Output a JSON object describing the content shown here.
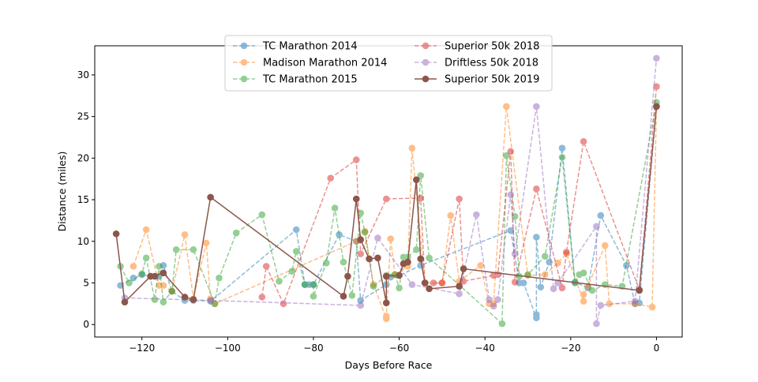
{
  "chart_data": {
    "type": "line",
    "title": "",
    "xlabel": "Days Before Race",
    "ylabel": "Distance (miles)",
    "xlim": [
      -131,
      6
    ],
    "ylim": [
      -1.5,
      33.5
    ],
    "xticks": [
      -120,
      -100,
      -80,
      -60,
      -40,
      -20,
      0
    ],
    "yticks": [
      0,
      5,
      10,
      15,
      20,
      25,
      30
    ],
    "legend_position": "top-center",
    "grid": false,
    "series": [
      {
        "name": "TC Marathon 2014",
        "color": "#1f77b4",
        "style": "dashed",
        "alpha": 0.5,
        "points": [
          [
            -125,
            4.7
          ],
          [
            -122,
            5.6
          ],
          [
            -120,
            6.0
          ],
          [
            -118,
            5.8
          ],
          [
            -116,
            5.8
          ],
          [
            -115,
            7.1
          ],
          [
            -113,
            4.0
          ],
          [
            -110,
            2.9
          ],
          [
            -108,
            2.9
          ],
          [
            -104,
            2.8
          ],
          [
            -84,
            11.4
          ],
          [
            -82,
            4.8
          ],
          [
            -81,
            4.8
          ],
          [
            -80,
            4.8
          ],
          [
            -74,
            10.8
          ],
          [
            -70,
            10.0
          ],
          [
            -69,
            2.9
          ],
          [
            -63,
            4.8
          ],
          [
            -62,
            5.7
          ],
          [
            -60,
            5.9
          ],
          [
            -55,
            7.1
          ],
          [
            -34,
            11.3
          ],
          [
            -32,
            5.0
          ],
          [
            -31,
            5.0
          ],
          [
            -28,
            0.8
          ],
          [
            -28,
            1.2
          ],
          [
            -28,
            10.5
          ],
          [
            -27,
            4.5
          ],
          [
            -25,
            7.5
          ],
          [
            -22,
            21.2
          ],
          [
            -19,
            5.1
          ],
          [
            -16,
            4.4
          ],
          [
            -13,
            13.1
          ],
          [
            -7,
            7.1
          ],
          [
            -5,
            2.5
          ],
          [
            -4,
            2.6
          ],
          [
            0,
            26.2
          ]
        ]
      },
      {
        "name": "Madison Marathon 2014",
        "color": "#ff7f0e",
        "style": "dashed",
        "alpha": 0.5,
        "points": [
          [
            -122,
            7.0
          ],
          [
            -119,
            11.4
          ],
          [
            -116,
            4.7
          ],
          [
            -115,
            4.7
          ],
          [
            -113,
            4.0
          ],
          [
            -110,
            10.8
          ],
          [
            -108,
            3.1
          ],
          [
            -105,
            9.8
          ],
          [
            -104,
            3.1
          ],
          [
            -103,
            2.5
          ],
          [
            -70,
            10.0
          ],
          [
            -68,
            11.2
          ],
          [
            -66,
            4.8
          ],
          [
            -63,
            0.7
          ],
          [
            -63,
            1.0
          ],
          [
            -62,
            10.3
          ],
          [
            -61,
            6.0
          ],
          [
            -58,
            7.0
          ],
          [
            -57,
            21.2
          ],
          [
            -54,
            5.0
          ],
          [
            -50,
            5.0
          ],
          [
            -48,
            13.1
          ],
          [
            -46,
            5.2
          ],
          [
            -41,
            7.1
          ],
          [
            -39,
            2.5
          ],
          [
            -38,
            2.5
          ],
          [
            -35,
            26.2
          ],
          [
            -30,
            5.9
          ],
          [
            -26,
            6.0
          ],
          [
            -23,
            7.4
          ],
          [
            -21,
            8.5
          ],
          [
            -17,
            2.8
          ],
          [
            -17,
            3.6
          ],
          [
            -16,
            4.6
          ],
          [
            -12,
            9.5
          ],
          [
            -11,
            2.5
          ],
          [
            -5,
            2.5
          ],
          [
            -1,
            2.1
          ],
          [
            0,
            26.2
          ]
        ]
      },
      {
        "name": "TC Marathon 2015",
        "color": "#2ca02c",
        "style": "dashed",
        "alpha": 0.5,
        "points": [
          [
            -125,
            7.0
          ],
          [
            -123,
            5.0
          ],
          [
            -120,
            6.1
          ],
          [
            -119,
            8.0
          ],
          [
            -117,
            3.0
          ],
          [
            -116,
            7.0
          ],
          [
            -115,
            2.7
          ],
          [
            -113,
            4.0
          ],
          [
            -112,
            9.0
          ],
          [
            -108,
            9.0
          ],
          [
            -103,
            2.5
          ],
          [
            -102,
            5.6
          ],
          [
            -98,
            11.0
          ],
          [
            -92,
            13.2
          ],
          [
            -88,
            5.2
          ],
          [
            -85,
            6.4
          ],
          [
            -84,
            8.8
          ],
          [
            -82,
            4.8
          ],
          [
            -80,
            4.8
          ],
          [
            -80,
            3.4
          ],
          [
            -77,
            7.4
          ],
          [
            -75,
            14.0
          ],
          [
            -73,
            7.5
          ],
          [
            -71,
            3.5
          ],
          [
            -69,
            13.4
          ],
          [
            -68,
            11.1
          ],
          [
            -66,
            4.6
          ],
          [
            -63,
            5.9
          ],
          [
            -61,
            6.0
          ],
          [
            -60,
            4.4
          ],
          [
            -59,
            8.1
          ],
          [
            -58,
            8.1
          ],
          [
            -56,
            9.0
          ],
          [
            -55,
            17.9
          ],
          [
            -53,
            8.0
          ],
          [
            -36,
            0.1
          ],
          [
            -35,
            20.3
          ],
          [
            -33,
            13.0
          ],
          [
            -32,
            5.8
          ],
          [
            -30,
            6.0
          ],
          [
            -26,
            8.2
          ],
          [
            -22,
            20.1
          ],
          [
            -19,
            5.0
          ],
          [
            -18,
            6.0
          ],
          [
            -17,
            6.2
          ],
          [
            -15,
            4.1
          ],
          [
            -12,
            4.8
          ],
          [
            -8,
            4.6
          ],
          [
            0,
            26.7
          ]
        ]
      },
      {
        "name": "Superior 50k 2018",
        "color": "#d62728",
        "style": "dashed",
        "alpha": 0.5,
        "points": [
          [
            -92,
            3.3
          ],
          [
            -91,
            7.0
          ],
          [
            -87,
            2.5
          ],
          [
            -76,
            17.6
          ],
          [
            -70,
            19.8
          ],
          [
            -69,
            8.5
          ],
          [
            -63,
            15.1
          ],
          [
            -55,
            15.2
          ],
          [
            -54,
            5.0
          ],
          [
            -52,
            5.0
          ],
          [
            -50,
            5.0
          ],
          [
            -46,
            15.1
          ],
          [
            -45,
            5.2
          ],
          [
            -38,
            5.9
          ],
          [
            -37,
            6.0
          ],
          [
            -34,
            20.8
          ],
          [
            -33,
            5.1
          ],
          [
            -28,
            16.3
          ],
          [
            -22,
            4.4
          ],
          [
            -21,
            8.7
          ],
          [
            -17,
            22.0
          ],
          [
            -4,
            4.2
          ],
          [
            0,
            28.6
          ]
        ]
      },
      {
        "name": "Driftless 50k 2018",
        "color": "#9467bd",
        "style": "dashed",
        "alpha": 0.5,
        "points": [
          [
            -124,
            3.2
          ],
          [
            -104,
            2.9
          ],
          [
            -69,
            2.3
          ],
          [
            -65,
            10.4
          ],
          [
            -57,
            4.8
          ],
          [
            -46,
            3.7
          ],
          [
            -42,
            13.2
          ],
          [
            -39,
            3.0
          ],
          [
            -38,
            2.2
          ],
          [
            -37,
            3.0
          ],
          [
            -34,
            15.6
          ],
          [
            -33,
            8.5
          ],
          [
            -28,
            26.2
          ],
          [
            -24,
            4.3
          ],
          [
            -23,
            5.0
          ],
          [
            -14,
            11.8
          ],
          [
            -14,
            0.1
          ],
          [
            -13,
            2.3
          ],
          [
            -5,
            2.8
          ],
          [
            0,
            32.0
          ]
        ]
      },
      {
        "name": "Superior 50k 2019",
        "color": "#8c564b",
        "style": "solid",
        "alpha": 1.0,
        "points": [
          [
            -126,
            10.9
          ],
          [
            -124,
            2.7
          ],
          [
            -118,
            5.8
          ],
          [
            -117,
            5.8
          ],
          [
            -115,
            6.2
          ],
          [
            -110,
            3.3
          ],
          [
            -108,
            3.0
          ],
          [
            -104,
            15.3
          ],
          [
            -73,
            3.4
          ],
          [
            -72,
            5.8
          ],
          [
            -70,
            15.1
          ],
          [
            -69,
            10.2
          ],
          [
            -67,
            7.9
          ],
          [
            -65,
            8.0
          ],
          [
            -63,
            2.6
          ],
          [
            -63,
            5.8
          ],
          [
            -60,
            5.9
          ],
          [
            -59,
            7.3
          ],
          [
            -58,
            7.5
          ],
          [
            -56,
            17.4
          ],
          [
            -55,
            7.9
          ],
          [
            -54,
            5.0
          ],
          [
            -53,
            4.3
          ],
          [
            -46,
            4.6
          ],
          [
            -45,
            6.7
          ],
          [
            -4,
            4.1
          ],
          [
            0,
            26.2
          ]
        ]
      }
    ]
  }
}
